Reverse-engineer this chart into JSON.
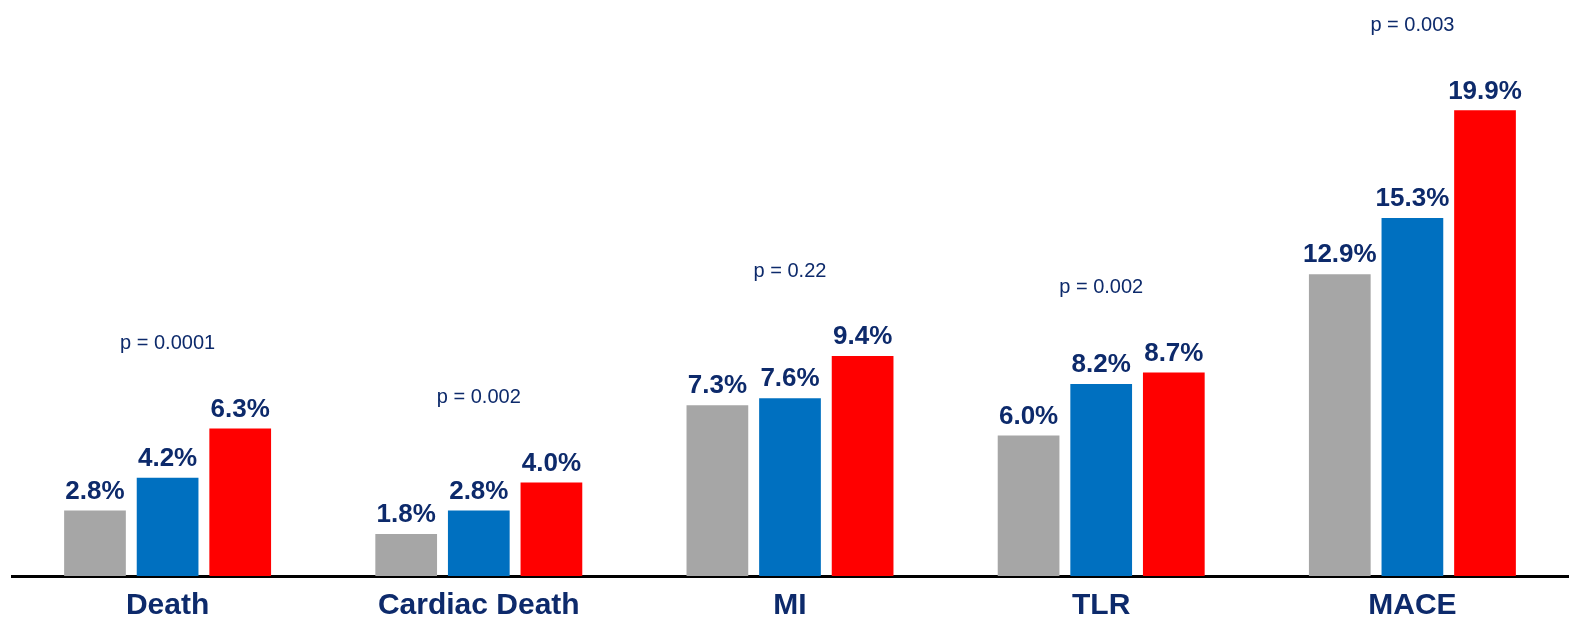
{
  "chart_data": {
    "type": "bar",
    "categories": [
      "Death",
      "Cardiac Death",
      "MI",
      "TLR",
      "MACE"
    ],
    "series": [
      {
        "color": "#a6a6a6",
        "values": [
          2.8,
          1.8,
          7.3,
          6.0,
          12.9
        ],
        "value_labels": [
          "2.8%",
          "1.8%",
          "7.3%",
          "6.0%",
          "12.9%"
        ]
      },
      {
        "color": "#0070c0",
        "values": [
          4.2,
          2.8,
          7.6,
          8.2,
          15.3
        ],
        "value_labels": [
          "4.2%",
          "2.8%",
          "7.6%",
          "8.2%",
          "15.3%"
        ]
      },
      {
        "color": "#ff0000",
        "values": [
          6.3,
          4.0,
          9.4,
          8.7,
          19.9
        ],
        "value_labels": [
          "6.3%",
          "4.0%",
          "9.4%",
          "8.7%",
          "19.9%"
        ]
      }
    ],
    "grid": false,
    "legend": false,
    "annotations": [
      "p = 0.0001",
      "p = 0.002",
      "p = 0.22",
      "p = 0.002",
      "p = 0.003"
    ]
  }
}
